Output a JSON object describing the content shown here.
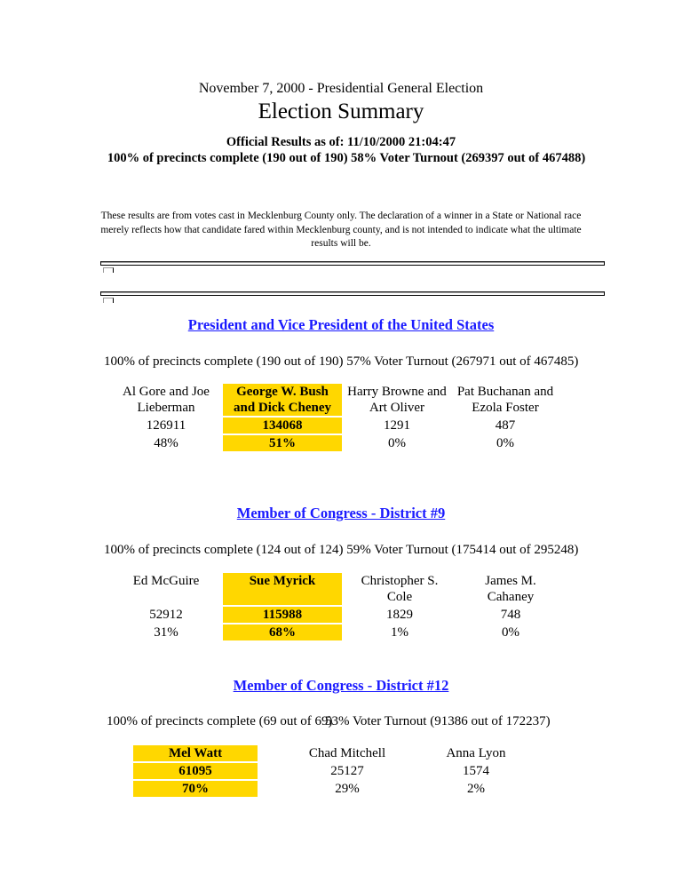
{
  "header": {
    "election": "November 7, 2000 - Presidential General Election",
    "title": "Election Summary",
    "official": "Official Results as of: 11/10/2000 21:04:47",
    "precincts": "100% of precincts complete (190 out of 190)   58% Voter Turnout (269397 out of 467488)",
    "disclaimer": "These results are from votes cast in Mecklenburg County only. The declaration of a winner in a State or National race merely reflects how that candidate fared within Mecklenburg county, and is not intended to indicate what the ultimate results will be."
  },
  "colors": {
    "winner": "#FFD700",
    "race_link": "#1a1aff"
  },
  "races": [
    {
      "title": "President and Vice President of the United States",
      "precincts": "100% of precincts complete (190 out of 190)",
      "turnout": "57% Voter Turnout (267971 out of 467485)",
      "candidates": [
        {
          "name": "Al Gore and Joe Lieberman",
          "votes": "126911",
          "pct": "48%"
        },
        {
          "name": "George W. Bush and Dick Cheney",
          "votes": "134068",
          "pct": "51%",
          "winner": true
        },
        {
          "name": "Harry Browne and Art Oliver",
          "votes": "1291",
          "pct": "0%"
        },
        {
          "name": "Pat Buchanan and Ezola Foster",
          "votes": "487",
          "pct": "0%"
        }
      ]
    },
    {
      "title": "Member of Congress - District #9",
      "precincts": "100% of precincts complete (124 out of 124)",
      "turnout": "59% Voter Turnout (175414 out of 295248)",
      "candidates": [
        {
          "name": "Ed McGuire",
          "votes": "52912",
          "pct": "31%"
        },
        {
          "name": "Sue Myrick",
          "votes": "115988",
          "pct": "68%",
          "winner": true
        },
        {
          "name": "Christopher S. Cole",
          "votes": "1829",
          "pct": "1%"
        },
        {
          "name": "James M. Cahaney",
          "votes": "748",
          "pct": "0%"
        }
      ]
    },
    {
      "title": "Member of Congress - District #12",
      "precincts": "100% of precincts complete (69 out of 69)",
      "turnout": "53% Voter Turnout (91386 out of 172237)",
      "candidates": [
        {
          "name": "Mel Watt",
          "votes": "61095",
          "pct": "70%",
          "winner": true
        },
        {
          "name": "Chad Mitchell",
          "votes": "25127",
          "pct": "29%"
        },
        {
          "name": "Anna Lyon",
          "votes": "1574",
          "pct": "2%"
        }
      ]
    }
  ]
}
